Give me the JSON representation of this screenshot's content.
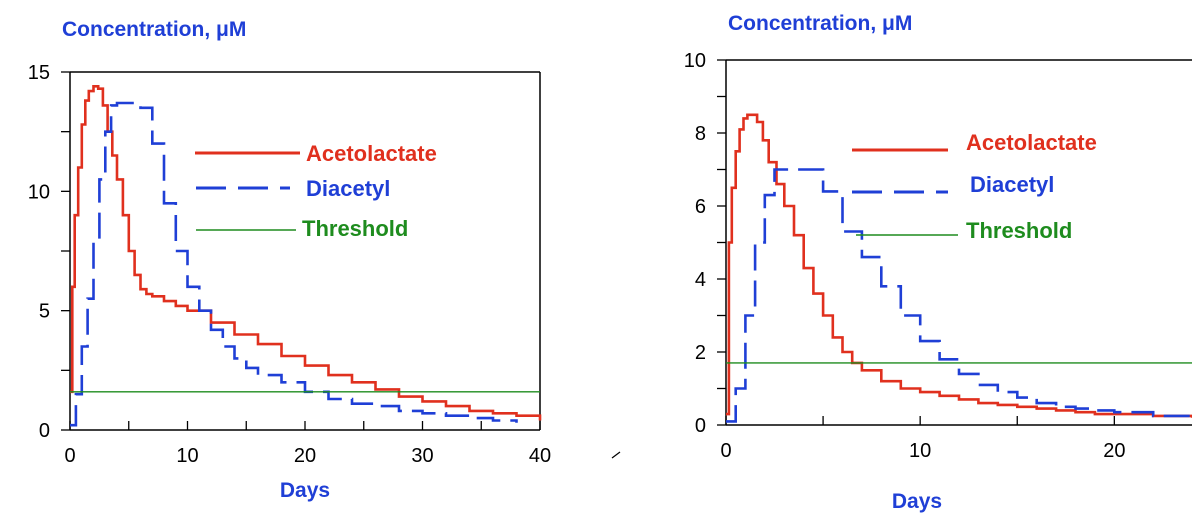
{
  "colors": {
    "acetolactate": "#e0301e",
    "diacetyl": "#1f3fd6",
    "threshold": "#1e8c1e",
    "label_blue": "#1f3fd6",
    "axis": "#000000"
  },
  "chart_data": [
    {
      "type": "line",
      "ylabel": "Concentration, μM",
      "xlabel": "Days",
      "xlim": [
        0,
        40
      ],
      "ylim": [
        0,
        15
      ],
      "xticks": [
        0,
        10,
        20,
        30,
        40
      ],
      "yticks": [
        0,
        5,
        10,
        15
      ],
      "x_tick_labels": [
        "0",
        "10",
        "20",
        "30",
        "40"
      ],
      "y_tick_labels": [
        "0",
        "5",
        "10",
        "15"
      ],
      "legend_position": "right",
      "series": [
        {
          "name": "Acetolactate",
          "style": "solid",
          "x": [
            0,
            0.2,
            0.4,
            0.7,
            1.0,
            1.3,
            1.6,
            2.0,
            2.4,
            2.8,
            3.2,
            3.6,
            4.0,
            4.5,
            5.0,
            5.5,
            6.0,
            6.5,
            7.0,
            8.0,
            9.0,
            10.0,
            12.0,
            14.0,
            16.0,
            18.0,
            20.0,
            22.0,
            24.0,
            26.0,
            28.0,
            30.0,
            32.0,
            34.0,
            36.0,
            38.0,
            39.5,
            40.0
          ],
          "y": [
            1.6,
            6.0,
            9.0,
            11.0,
            12.8,
            13.8,
            14.2,
            14.4,
            14.3,
            13.6,
            12.5,
            11.5,
            10.5,
            9.0,
            7.5,
            6.5,
            5.9,
            5.7,
            5.6,
            5.4,
            5.2,
            5.0,
            4.5,
            4.0,
            3.6,
            3.1,
            2.7,
            2.3,
            2.0,
            1.7,
            1.4,
            1.2,
            1.0,
            0.8,
            0.7,
            0.6,
            0.6,
            0.4
          ]
        },
        {
          "name": "Diacetyl",
          "style": "dashed",
          "x": [
            0,
            0.5,
            1.0,
            1.5,
            2.0,
            2.5,
            3.0,
            3.5,
            4.0,
            5.0,
            6.0,
            7.0,
            8.0,
            9.0,
            10.0,
            11.0,
            12.0,
            13.0,
            14.0,
            15.0,
            16.0,
            18.0,
            20.0,
            22.0,
            24.0,
            26.0,
            28.0,
            30.0,
            32.0,
            34.0,
            36.0,
            38.0
          ],
          "y": [
            0.2,
            1.5,
            3.5,
            5.5,
            8.0,
            10.5,
            12.5,
            13.6,
            13.7,
            13.7,
            13.5,
            12.0,
            9.5,
            7.5,
            6.0,
            5.0,
            4.2,
            3.5,
            3.0,
            2.6,
            2.3,
            2.0,
            1.6,
            1.3,
            1.1,
            1.0,
            0.8,
            0.7,
            0.6,
            0.5,
            0.4,
            0.3
          ]
        },
        {
          "name": "Threshold",
          "style": "solid-thin",
          "x": [
            0,
            40
          ],
          "y": [
            1.6,
            1.6
          ]
        }
      ]
    },
    {
      "type": "line",
      "ylabel": "Concentration, μM",
      "xlabel": "Days",
      "xlim": [
        0,
        24
      ],
      "ylim": [
        0,
        10
      ],
      "xticks": [
        0,
        10,
        20
      ],
      "yticks": [
        0,
        2,
        4,
        6,
        8,
        10
      ],
      "x_tick_labels": [
        "0",
        "10",
        "20"
      ],
      "y_tick_labels": [
        "0",
        "2",
        "4",
        "6",
        "8",
        "10"
      ],
      "legend_position": "right",
      "series": [
        {
          "name": "Acetolactate",
          "style": "solid",
          "x": [
            0,
            0.15,
            0.3,
            0.5,
            0.7,
            0.9,
            1.1,
            1.3,
            1.6,
            1.9,
            2.2,
            2.6,
            3.0,
            3.5,
            4.0,
            4.5,
            5.0,
            5.5,
            6.0,
            6.5,
            7.0,
            8.0,
            9.0,
            10.0,
            11.0,
            12.0,
            13.0,
            14.0,
            15.0,
            16.0,
            17.0,
            18.0,
            19.0,
            20.0,
            22.0,
            24.0
          ],
          "y": [
            0.3,
            5.0,
            6.5,
            7.5,
            8.1,
            8.4,
            8.5,
            8.5,
            8.3,
            7.8,
            7.2,
            6.6,
            6.0,
            5.2,
            4.3,
            3.6,
            3.0,
            2.4,
            2.0,
            1.7,
            1.5,
            1.2,
            1.0,
            0.9,
            0.8,
            0.7,
            0.6,
            0.55,
            0.5,
            0.45,
            0.4,
            0.35,
            0.3,
            0.3,
            0.25,
            0.2
          ]
        },
        {
          "name": "Diacetyl",
          "style": "dashed",
          "x": [
            0,
            0.5,
            1.0,
            1.5,
            2.0,
            2.5,
            3.0,
            4.0,
            5.0,
            6.0,
            7.0,
            8.0,
            9.0,
            10.0,
            11.0,
            12.0,
            13.0,
            14.0,
            15.0,
            16.0,
            17.0,
            18.0,
            19.0,
            20.0,
            22.0,
            24.0
          ],
          "y": [
            0.1,
            1.0,
            3.0,
            5.0,
            6.3,
            7.0,
            7.0,
            7.0,
            6.4,
            5.3,
            4.6,
            3.8,
            3.0,
            2.3,
            1.8,
            1.4,
            1.1,
            0.9,
            0.75,
            0.6,
            0.5,
            0.45,
            0.4,
            0.35,
            0.25,
            0.2
          ]
        },
        {
          "name": "Threshold",
          "style": "solid-thin",
          "x": [
            0,
            24
          ],
          "y": [
            1.7,
            1.7
          ]
        }
      ]
    }
  ]
}
